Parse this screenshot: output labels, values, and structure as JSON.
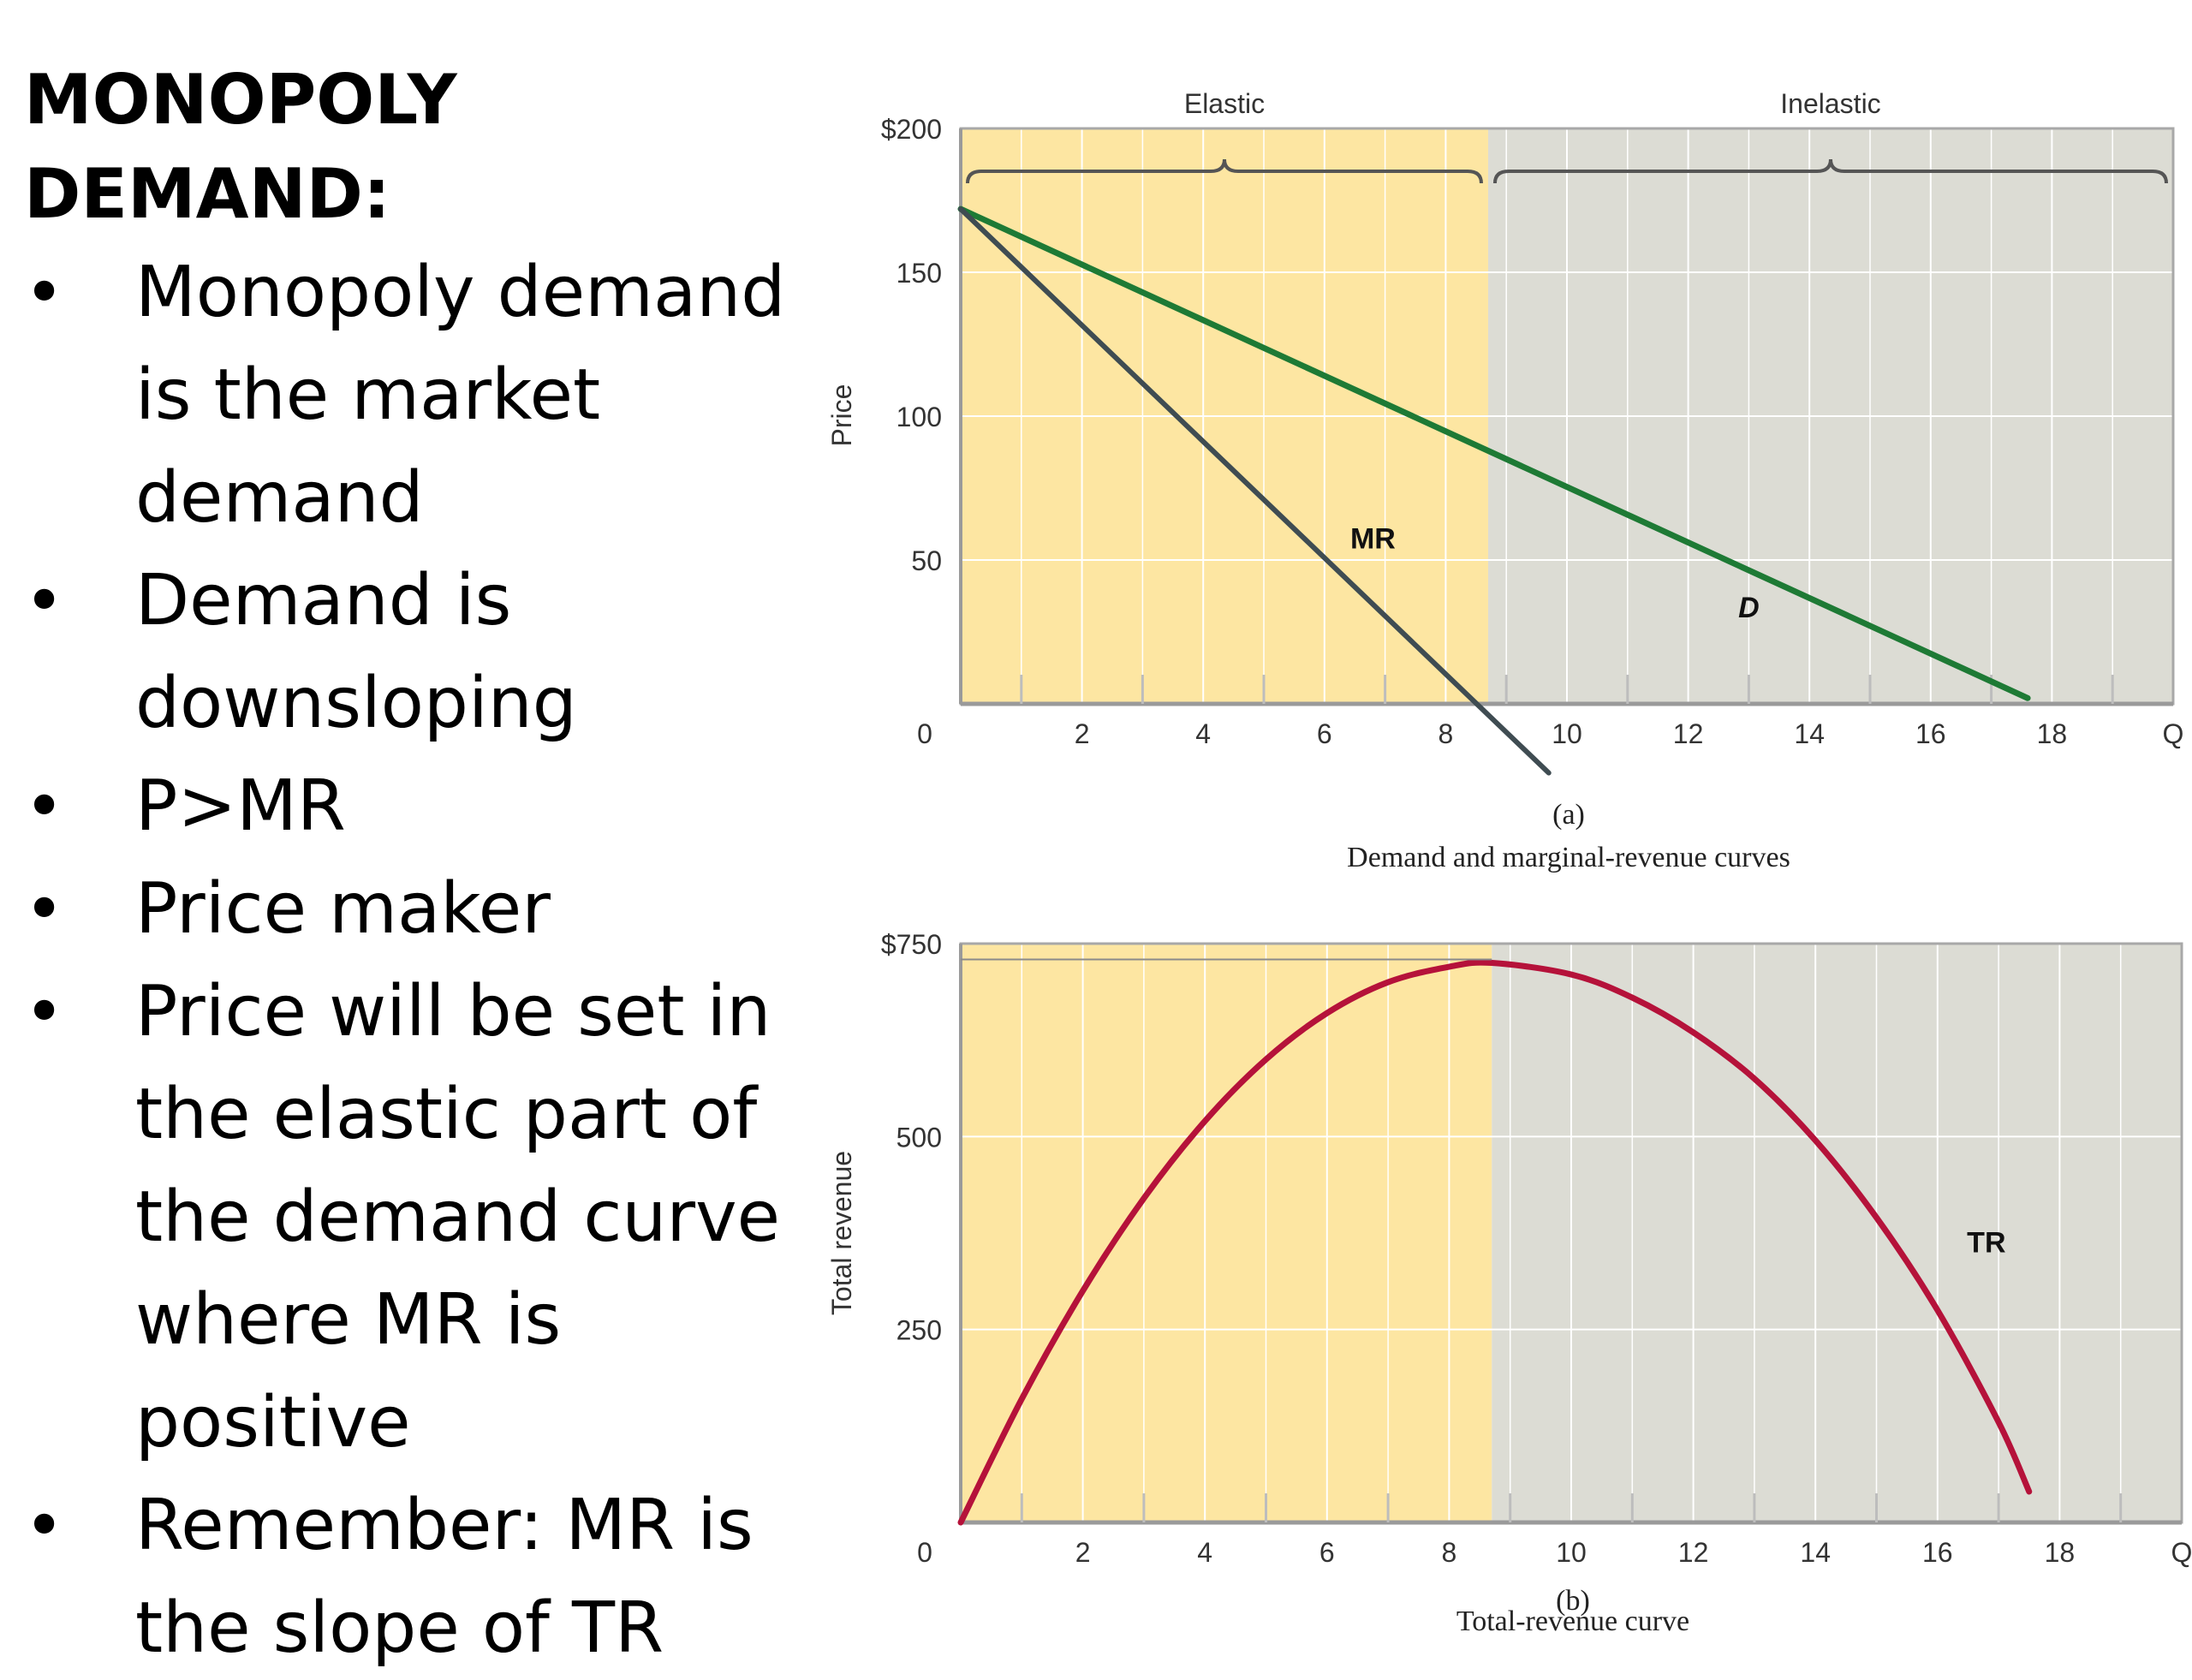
{
  "slide": {
    "title": "MONOPOLY DEMAND:",
    "bullets": [
      "Monopoly demand is the market demand",
      "Demand is downsloping",
      "P>MR",
      "Price maker",
      "Price will be set in the elastic part of the demand curve where MR is positive",
      "Remember: MR is the slope of TR"
    ],
    "bullet_glyph": "•"
  },
  "colors": {
    "elastic_region": "#fde6a2",
    "inelastic_region": "#dcdcd4",
    "demand": "#1e7a35",
    "marginal_revenue": "#3f4c52",
    "total_revenue": "#b5123a",
    "grid": "#ffffff"
  },
  "chart_data": [
    {
      "type": "line",
      "ylabel": "Price",
      "ylim": [
        0,
        200
      ],
      "y_ticks": [
        "$200",
        "150",
        "100",
        "50",
        "0"
      ],
      "y_tick_values": [
        200,
        150,
        100,
        50,
        0
      ],
      "xlim": [
        0,
        20
      ],
      "x_ticks": [
        "2",
        "4",
        "6",
        "8",
        "10",
        "12",
        "14",
        "16",
        "18",
        "Q"
      ],
      "x_tick_values": [
        2,
        4,
        6,
        8,
        10,
        12,
        14,
        16,
        18,
        20
      ],
      "regions": [
        {
          "name": "Elastic",
          "x_from": 0,
          "x_to": 8.7
        },
        {
          "name": "Inelastic",
          "x_from": 8.7,
          "x_to": 20
        }
      ],
      "series": [
        {
          "name": "D",
          "x": [
            0,
            17.6
          ],
          "y": [
            172,
            2
          ]
        },
        {
          "name": "MR",
          "x": [
            0,
            9.7
          ],
          "y": [
            172,
            -24
          ]
        }
      ],
      "caption_letter": "(a)",
      "caption": "Demand and marginal-revenue curves"
    },
    {
      "type": "line",
      "ylabel": "Total revenue",
      "ylim": [
        0,
        750
      ],
      "y_ticks": [
        "$750",
        "500",
        "250",
        "0"
      ],
      "y_tick_values": [
        750,
        500,
        250,
        0
      ],
      "xlim": [
        0,
        20
      ],
      "x_ticks": [
        "2",
        "4",
        "6",
        "8",
        "10",
        "12",
        "14",
        "16",
        "18",
        "Q"
      ],
      "x_tick_values": [
        2,
        4,
        6,
        8,
        10,
        12,
        14,
        16,
        18,
        20
      ],
      "regions": [
        {
          "name": "Elastic",
          "x_from": 0,
          "x_to": 8.7
        },
        {
          "name": "Inelastic",
          "x_from": 8.7,
          "x_to": 20
        }
      ],
      "series": [
        {
          "name": "TR",
          "x": [
            0,
            1,
            2,
            3,
            4,
            5,
            6,
            7,
            8,
            8.7,
            10,
            11,
            12,
            13,
            14,
            15,
            16,
            17,
            17.5
          ],
          "y": [
            0,
            160,
            300,
            420,
            520,
            600,
            660,
            700,
            720,
            725,
            710,
            680,
            635,
            575,
            495,
            395,
            275,
            130,
            40
          ]
        }
      ],
      "max_revenue": 725,
      "caption_letter": "(b)",
      "caption": "Total-revenue curve"
    }
  ]
}
